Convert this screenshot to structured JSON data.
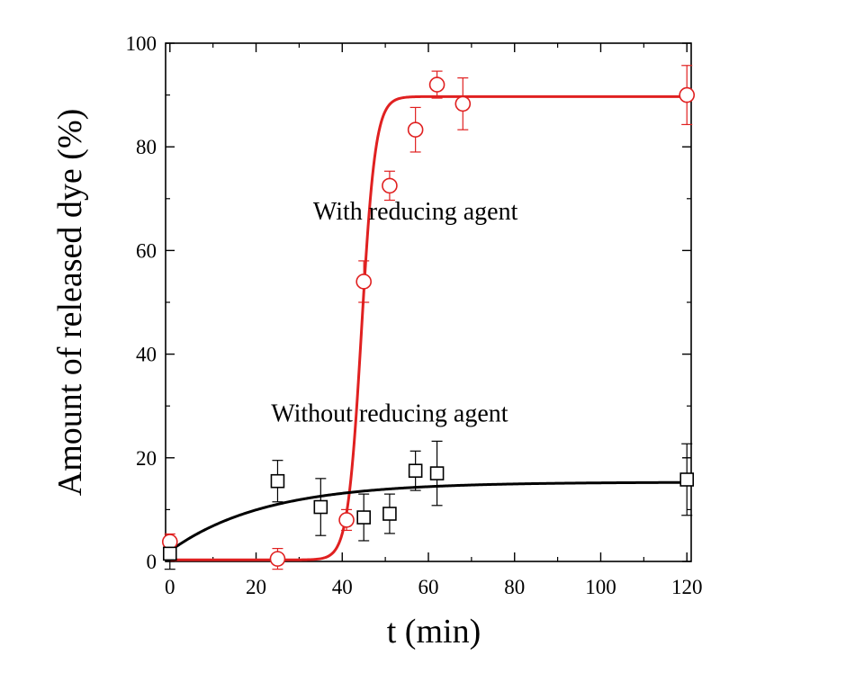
{
  "chart_data": {
    "type": "scatter",
    "xlabel": "t (min)",
    "ylabel": "Amount of released dye (%)",
    "xlim": [
      -1,
      121
    ],
    "ylim": [
      0,
      100
    ],
    "x_tick_labels": [
      "0",
      "20",
      "40",
      "60",
      "80",
      "100",
      "120"
    ],
    "x_ticks": [
      0,
      20,
      40,
      60,
      80,
      100,
      120
    ],
    "y_tick_labels": [
      "0",
      "20",
      "40",
      "60",
      "80",
      "100"
    ],
    "y_ticks": [
      0,
      20,
      40,
      60,
      80,
      100
    ],
    "annotations": [
      {
        "text": "With reducing agent",
        "x": 57,
        "y": 66
      },
      {
        "text": "Without reducing agent",
        "x": 51,
        "y": 27
      }
    ],
    "series": [
      {
        "marker": "circle",
        "color": "#e02020",
        "points": [
          {
            "x": 0,
            "y": 3.8,
            "err": 1.5
          },
          {
            "x": 25,
            "y": 0.5,
            "err": 2.0
          },
          {
            "x": 41,
            "y": 8.0,
            "err": 2.0
          },
          {
            "x": 45,
            "y": 54.0,
            "err": 4.0
          },
          {
            "x": 51,
            "y": 72.5,
            "err": 2.8
          },
          {
            "x": 57,
            "y": 83.3,
            "err": 4.3
          },
          {
            "x": 62,
            "y": 92.0,
            "err": 2.6
          },
          {
            "x": 68,
            "y": 88.3,
            "err": 5.0
          },
          {
            "x": 120,
            "y": 90.0,
            "err": 5.7
          }
        ],
        "fit": {
          "type": "sigmoid",
          "baseline": 0.3,
          "plateau": 89.7,
          "midpoint": 44.5,
          "width": 1.6
        }
      },
      {
        "marker": "square",
        "color": "#000000",
        "points": [
          {
            "x": 0,
            "y": 1.5,
            "err": 3.0
          },
          {
            "x": 25,
            "y": 15.5,
            "err": 4.0
          },
          {
            "x": 35,
            "y": 10.5,
            "err": 5.5
          },
          {
            "x": 45,
            "y": 8.5,
            "err": 4.5
          },
          {
            "x": 51,
            "y": 9.2,
            "err": 3.8
          },
          {
            "x": 57,
            "y": 17.5,
            "err": 3.8
          },
          {
            "x": 62,
            "y": 17.0,
            "err": 6.2
          },
          {
            "x": 120,
            "y": 15.8,
            "err": 6.9
          }
        ],
        "fit": {
          "type": "exp_rise",
          "start": 2.0,
          "plateau": 15.3,
          "tau": 22
        }
      }
    ]
  }
}
